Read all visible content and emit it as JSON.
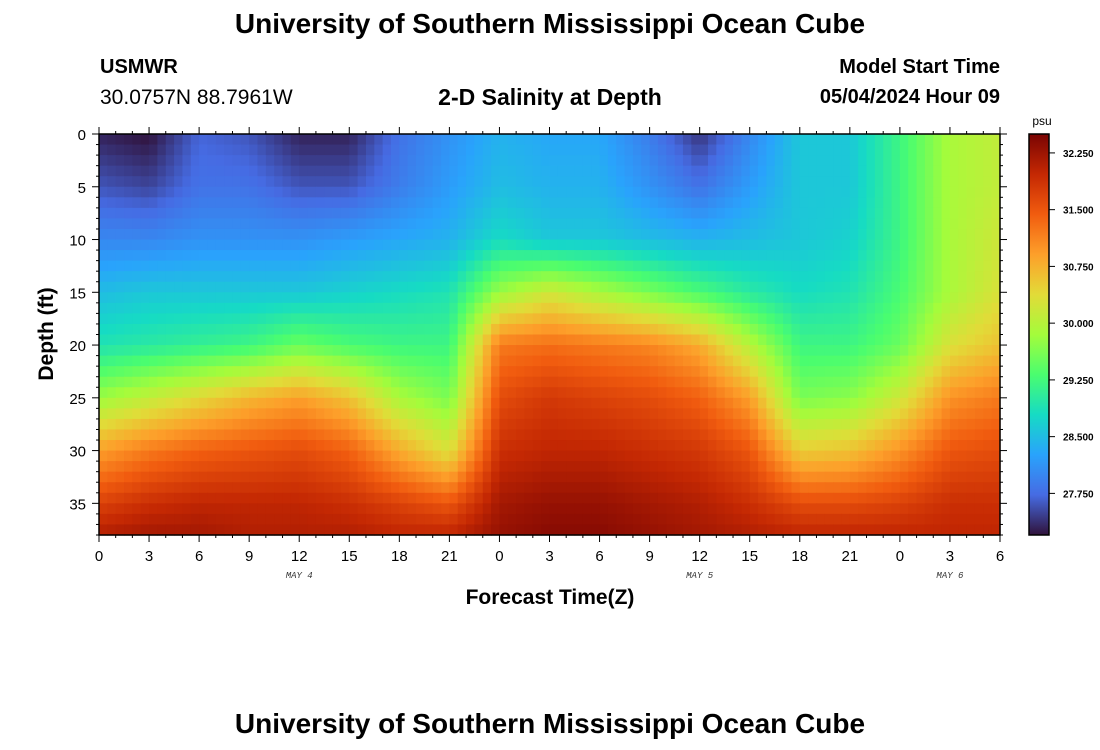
{
  "header": {
    "title": "University of Southern Mississippi Ocean Cube",
    "station_id": "USMWR",
    "coordinates": "30.0757N  88.7961W",
    "chart_title": "2-D Salinity at Depth",
    "model_start_label": "Model Start Time",
    "model_start_value": "05/04/2024 Hour 09"
  },
  "footer": {
    "title": "University of Southern Mississippi Ocean Cube"
  },
  "chart_data": {
    "type": "heatmap",
    "title": "2-D Salinity at Depth",
    "xlabel": "Forecast Time(Z)",
    "ylabel": "Depth (ft)",
    "x_tick_labels": [
      "0",
      "3",
      "6",
      "9",
      "12",
      "15",
      "18",
      "21",
      "0",
      "3",
      "6",
      "9",
      "12",
      "15",
      "18",
      "21",
      "0",
      "3",
      "6"
    ],
    "x_range_hours": [
      0,
      54
    ],
    "y_ticks": [
      0,
      5,
      10,
      15,
      20,
      25,
      30,
      35
    ],
    "ylim": [
      0,
      38
    ],
    "y_inverted": true,
    "day_labels": [
      {
        "text": "MAY 4",
        "hour": 12
      },
      {
        "text": "MAY 5",
        "hour": 36
      },
      {
        "text": "MAY 6",
        "hour": 51
      }
    ],
    "colorbar": {
      "unit": "psu",
      "range": [
        27.2,
        32.5
      ],
      "tick_labels": [
        "32.250",
        "31.500",
        "30.750",
        "30.000",
        "29.250",
        "28.500",
        "27.750"
      ],
      "tick_values": [
        32.25,
        31.5,
        30.75,
        30.0,
        29.25,
        28.5,
        27.75
      ],
      "colormap": "turbo"
    },
    "depth_grid_ft": [
      0,
      5,
      10,
      15,
      20,
      25,
      30,
      35,
      38
    ],
    "time_grid_hours": [
      0,
      3,
      6,
      9,
      12,
      15,
      18,
      21,
      24,
      27,
      30,
      33,
      36,
      39,
      42,
      45,
      48,
      51,
      54
    ],
    "salinity_psu": [
      [
        27.3,
        27.2,
        27.7,
        27.6,
        27.3,
        27.3,
        27.8,
        28.1,
        28.4,
        28.3,
        28.3,
        27.9,
        27.4,
        28.0,
        28.6,
        28.6,
        29.2,
        29.9,
        30.1
      ],
      [
        27.6,
        27.5,
        27.8,
        27.8,
        27.6,
        27.6,
        27.9,
        28.2,
        28.5,
        28.4,
        28.4,
        28.1,
        27.8,
        28.2,
        28.6,
        28.6,
        29.2,
        29.9,
        30.1
      ],
      [
        28.0,
        28.0,
        28.1,
        28.1,
        28.1,
        28.2,
        28.3,
        28.4,
        28.8,
        28.6,
        28.6,
        28.5,
        28.4,
        28.5,
        28.6,
        28.7,
        29.2,
        29.9,
        30.2
      ],
      [
        28.5,
        28.6,
        28.6,
        28.6,
        28.6,
        28.7,
        28.8,
        28.9,
        29.8,
        30.2,
        29.9,
        29.6,
        29.3,
        29.0,
        28.8,
        28.9,
        29.3,
        29.9,
        30.3
      ],
      [
        28.9,
        29.0,
        29.1,
        29.2,
        29.5,
        29.3,
        29.2,
        29.2,
        31.2,
        31.3,
        31.2,
        31.1,
        30.8,
        30.0,
        29.2,
        29.2,
        29.5,
        30.3,
        30.6
      ],
      [
        29.8,
        30.1,
        30.4,
        30.7,
        30.9,
        30.6,
        29.9,
        29.6,
        31.6,
        31.8,
        31.7,
        31.6,
        31.4,
        30.9,
        29.6,
        29.7,
        30.2,
        31.0,
        31.2
      ],
      [
        30.9,
        31.2,
        31.4,
        31.5,
        31.6,
        31.4,
        30.8,
        30.3,
        31.9,
        32.0,
        32.0,
        31.9,
        31.8,
        31.5,
        30.5,
        30.6,
        31.0,
        31.5,
        31.6
      ],
      [
        31.7,
        31.9,
        32.0,
        32.0,
        32.0,
        31.9,
        31.7,
        31.5,
        32.2,
        32.3,
        32.3,
        32.2,
        32.1,
        31.9,
        31.6,
        31.6,
        31.7,
        31.9,
        31.9
      ],
      [
        32.1,
        32.2,
        32.2,
        32.1,
        32.1,
        32.1,
        32.0,
        32.0,
        32.3,
        32.4,
        32.4,
        32.3,
        32.2,
        32.1,
        32.0,
        32.0,
        32.0,
        32.0,
        32.0
      ]
    ]
  }
}
